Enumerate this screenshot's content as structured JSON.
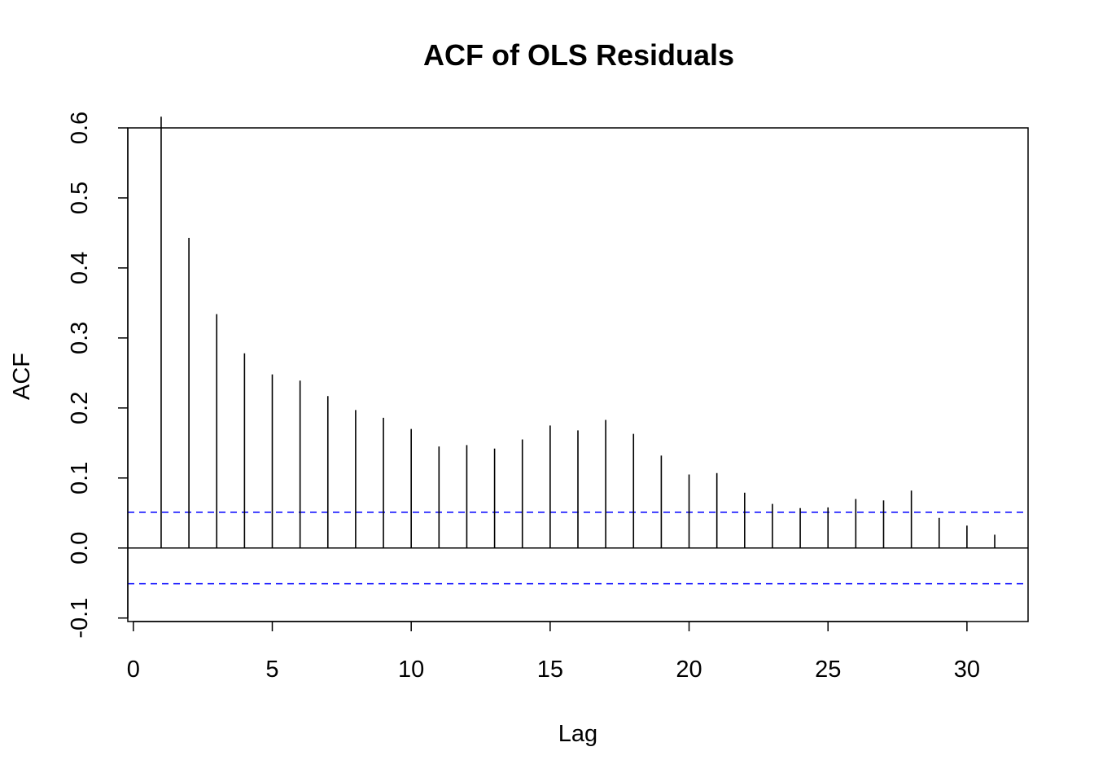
{
  "chart_data": {
    "type": "bar",
    "title": "ACF of OLS Residuals",
    "xlabel": "Lag",
    "ylabel": "ACF",
    "xlim": [
      -0.2,
      32.2
    ],
    "ylim": [
      -0.105,
      0.6
    ],
    "x_ticks": [
      "0",
      "5",
      "10",
      "15",
      "20",
      "25",
      "30"
    ],
    "x_tick_values": [
      0,
      5,
      10,
      15,
      20,
      25,
      30
    ],
    "y_ticks": [
      "-0.1",
      "0.0",
      "0.1",
      "0.2",
      "0.3",
      "0.4",
      "0.5",
      "0.6"
    ],
    "y_tick_values": [
      -0.1,
      0.0,
      0.1,
      0.2,
      0.3,
      0.4,
      0.5,
      0.6
    ],
    "lags": [
      1,
      2,
      3,
      4,
      5,
      6,
      7,
      8,
      9,
      10,
      11,
      12,
      13,
      14,
      15,
      16,
      17,
      18,
      19,
      20,
      21,
      22,
      23,
      24,
      25,
      26,
      27,
      28,
      29,
      30,
      31
    ],
    "values": [
      0.616,
      0.443,
      0.334,
      0.278,
      0.248,
      0.239,
      0.217,
      0.197,
      0.186,
      0.17,
      0.145,
      0.147,
      0.142,
      0.155,
      0.175,
      0.168,
      0.183,
      0.163,
      0.132,
      0.105,
      0.107,
      0.079,
      0.063,
      0.057,
      0.058,
      0.07,
      0.068,
      0.082,
      0.043,
      0.032,
      0.019
    ],
    "confidence_bound": 0.051,
    "colors": {
      "bars": "#000000",
      "confidence_lines": "#0000ff",
      "zero_line": "#000000"
    },
    "grid": false
  }
}
